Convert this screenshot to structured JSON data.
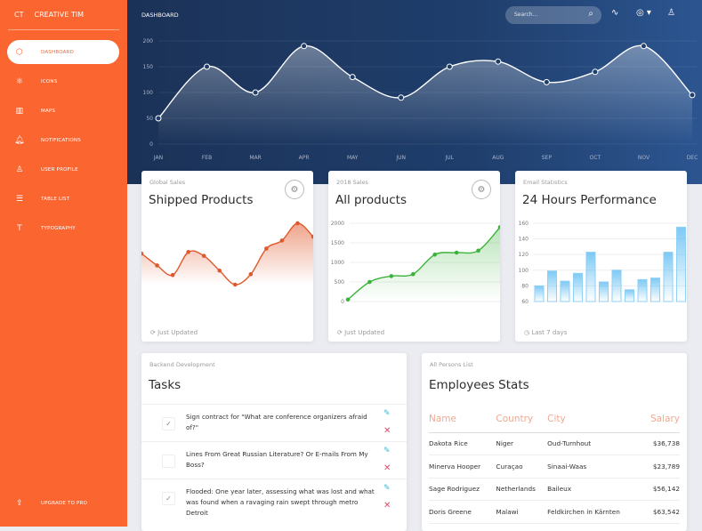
{
  "brand": {
    "short": "CT",
    "name": "CREATIVE TIM"
  },
  "sidebar": {
    "items": [
      {
        "label": "DASHBOARD",
        "icon": "cube-icon",
        "glyph": "⬡",
        "active": true
      },
      {
        "label": "ICONS",
        "icon": "atom-icon",
        "glyph": "⚛"
      },
      {
        "label": "MAPS",
        "icon": "map-icon",
        "glyph": "▥"
      },
      {
        "label": "NOTIFICATIONS",
        "icon": "bell-icon",
        "glyph": "🔔︎"
      },
      {
        "label": "USER PROFILE",
        "icon": "user-icon",
        "glyph": "♙"
      },
      {
        "label": "TABLE LIST",
        "icon": "list-icon",
        "glyph": "☰"
      },
      {
        "label": "TYPOGRAPHY",
        "icon": "text-icon",
        "glyph": "T"
      }
    ],
    "upgrade": "UPGRADE TO PRO"
  },
  "header": {
    "title": "DASHBOARD",
    "search_placeholder": "Search..."
  },
  "colors": {
    "sidebar": "#fa6530",
    "header": "#1f3e6c",
    "orange_line": "#e0592c",
    "green_line": "#3bb33b",
    "bar": "#8fd0f5"
  },
  "cards": {
    "shipped": {
      "category": "Global Sales",
      "title": "Shipped Products",
      "footer": "Just Updated"
    },
    "all": {
      "category": "2018 Sales",
      "title": "All products",
      "footer": "Just Updated"
    },
    "email": {
      "category": "Email Statistics",
      "title": "24 Hours Performance",
      "footer": "Last 7 days"
    }
  },
  "tasks": {
    "category": "Backend Development",
    "title": "Tasks",
    "items": [
      {
        "text": "Sign contract for \"What are conference organizers afraid of?\"",
        "checked": true
      },
      {
        "text": "Lines From Great Russian Literature? Or E-mails From My Boss?",
        "checked": false
      },
      {
        "text": "Flooded: One year later, assessing what was lost and what was found when a ravaging rain swept through metro Detroit",
        "checked": true
      }
    ]
  },
  "employees": {
    "category": "All Persons List",
    "title": "Employees Stats",
    "columns": [
      "Name",
      "Country",
      "City",
      "Salary"
    ],
    "rows": [
      [
        "Dakota Rice",
        "Niger",
        "Oud-Turnhout",
        "$36,738"
      ],
      [
        "Minerva Hooper",
        "Curaçao",
        "Sinaai-Waas",
        "$23,789"
      ],
      [
        "Sage Rodriguez",
        "Netherlands",
        "Baileux",
        "$56,142"
      ],
      [
        "Doris Greene",
        "Malawi",
        "Feldkirchen in Kärnten",
        "$63,542"
      ]
    ]
  },
  "chart_data": [
    {
      "type": "area",
      "categories": [
        "JAN",
        "FEB",
        "MAR",
        "APR",
        "MAY",
        "JUN",
        "JUL",
        "AUG",
        "SEP",
        "OCT",
        "NOV",
        "DEC"
      ],
      "values": [
        50,
        150,
        100,
        190,
        130,
        90,
        150,
        160,
        120,
        140,
        190,
        95
      ],
      "ylim": [
        0,
        200
      ],
      "yticks": [
        0,
        50,
        100,
        150,
        200
      ],
      "grid": true
    },
    {
      "type": "area",
      "values": [
        542,
        480,
        430,
        550,
        530,
        453,
        380,
        434,
        568,
        610,
        700,
        630
      ],
      "grid": false
    },
    {
      "type": "area",
      "values": [
        50,
        500,
        650,
        700,
        1200,
        1250,
        1300,
        1900
      ],
      "ylim": [
        0,
        2000
      ],
      "yticks": [
        0,
        500,
        1000,
        1500,
        2000
      ],
      "grid": true
    },
    {
      "type": "bar",
      "values": [
        80,
        99,
        86,
        96,
        123,
        85,
        100,
        75,
        88,
        90,
        123,
        155
      ],
      "ylim": [
        60,
        160
      ],
      "yticks": [
        60,
        80,
        100,
        120,
        140,
        160
      ],
      "grid": true
    }
  ]
}
